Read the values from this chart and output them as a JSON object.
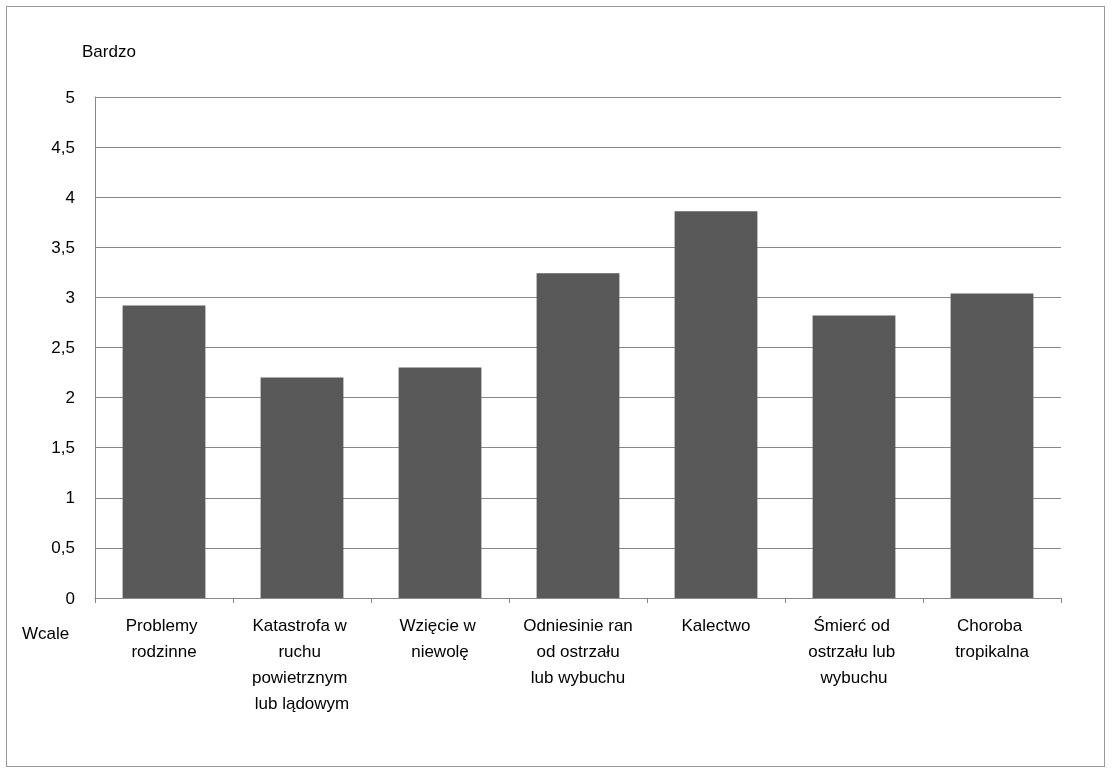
{
  "chart_data": {
    "type": "bar",
    "categories": [
      "Problemy rodzinne",
      "Katastrofa w ruchu powietrznym lub lądowym",
      "Wzięcie w niewolę",
      "Odniesinie ran od ostrzału lub wybuchu",
      "Kalectwo",
      "Śmierć od ostrzału lub wybuchu",
      "Choroba tropikalna"
    ],
    "values": [
      2.92,
      2.2,
      2.3,
      3.24,
      3.86,
      2.82,
      3.04
    ],
    "color": "#595959",
    "ylim": [
      0,
      5
    ],
    "yticks": [
      0,
      {
        "value": 0.5,
        "label": "0,5"
      },
      1,
      {
        "value": 1.5,
        "label": "1,5"
      },
      2,
      {
        "value": 2.5,
        "label": "2,5"
      },
      3,
      {
        "value": 3.5,
        "label": "3,5"
      },
      4,
      {
        "value": 4.5,
        "label": "4,5"
      },
      5
    ],
    "grid": "y",
    "annotations": [
      "Bardzo",
      "Wcale"
    ]
  }
}
